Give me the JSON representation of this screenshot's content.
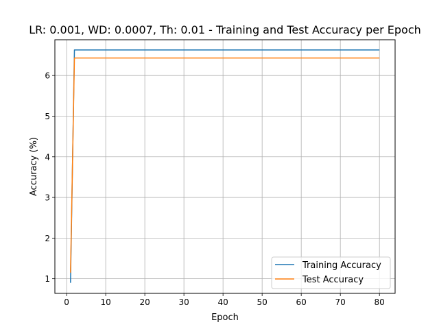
{
  "chart_data": {
    "type": "line",
    "title": "LR: 0.001, WD: 0.0007, Th: 0.01 - Training and Test Accuracy per Epoch",
    "xlabel": "Epoch",
    "ylabel": "Accuracy (%)",
    "xlim": [
      -3,
      84
    ],
    "ylim": [
      0.64,
      6.88
    ],
    "xticks": [
      0,
      10,
      20,
      30,
      40,
      50,
      60,
      70,
      80
    ],
    "yticks": [
      1,
      2,
      3,
      4,
      5,
      6
    ],
    "grid": true,
    "legend": "lower-right",
    "series": [
      {
        "name": "Training Accuracy",
        "color": "#1f77b4",
        "x": [
          1,
          2,
          80
        ],
        "y": [
          0.9,
          6.63,
          6.63
        ]
      },
      {
        "name": "Test Accuracy",
        "color": "#ff7f0e",
        "x": [
          1,
          2,
          80
        ],
        "y": [
          1.15,
          6.43,
          6.43
        ]
      }
    ]
  }
}
